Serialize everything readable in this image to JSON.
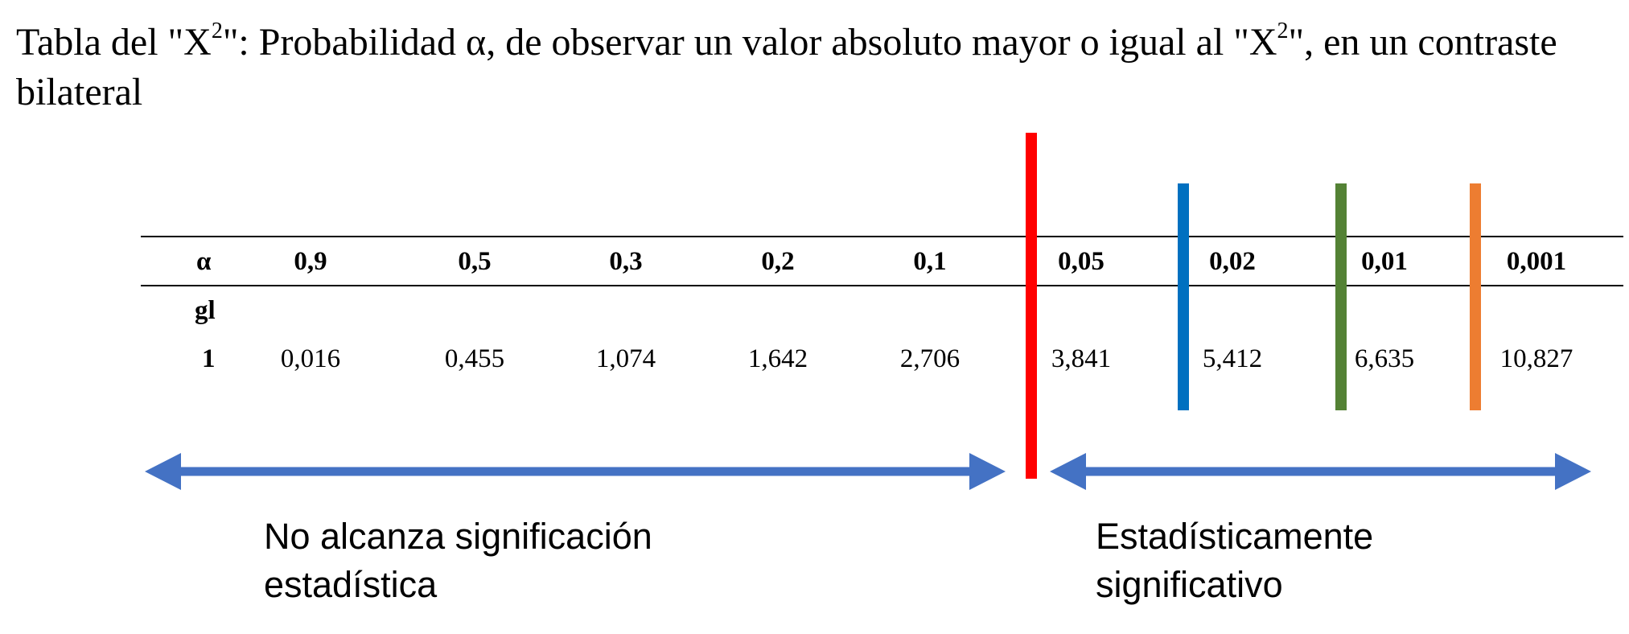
{
  "title": {
    "before_sup_1": "Tabla del \"X",
    "sup_1": "2",
    "middle": "\": Probabilidad α, de observar un valor absoluto mayor o igual al \"X",
    "sup_2": "2",
    "after": "\", en un contraste bilateral"
  },
  "table": {
    "alpha_label": "α",
    "gl_label": "gl",
    "row_label": "1",
    "columns": [
      {
        "alpha": "0,9",
        "value": "0,016"
      },
      {
        "alpha": "0,5",
        "value": "0,455"
      },
      {
        "alpha": "0,3",
        "value": "1,074"
      },
      {
        "alpha": "0,2",
        "value": "1,642"
      },
      {
        "alpha": "0,1",
        "value": "2,706"
      },
      {
        "alpha": "0,05",
        "value": "3,841"
      },
      {
        "alpha": "0,02",
        "value": "5,412"
      },
      {
        "alpha": "0,01",
        "value": "6,635"
      },
      {
        "alpha": "0,001",
        "value": "10,827"
      }
    ]
  },
  "markers": [
    {
      "name": "threshold-0-05",
      "color": "#ff0000"
    },
    {
      "name": "threshold-0-02",
      "color": "#0070c0"
    },
    {
      "name": "threshold-0-01",
      "color": "#548235"
    },
    {
      "name": "threshold-0-001",
      "color": "#ed7d31"
    }
  ],
  "arrow_color": "#4472c4",
  "captions": {
    "left": [
      "No alcanza significación",
      "estadística"
    ],
    "right": [
      "Estadísticamente",
      "significativo"
    ]
  }
}
